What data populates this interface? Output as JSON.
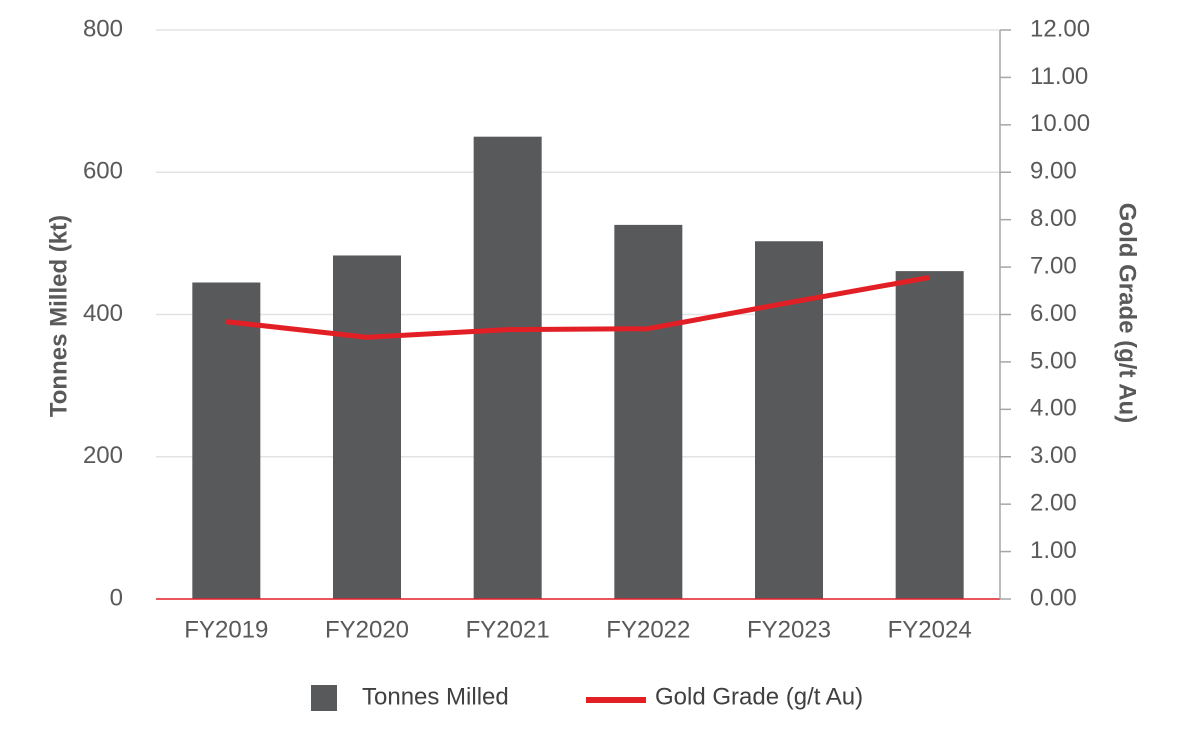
{
  "chart_data": {
    "type": "bar",
    "categories": [
      "FY2019",
      "FY2020",
      "FY2021",
      "FY2022",
      "FY2023",
      "FY2024"
    ],
    "series": [
      {
        "name": "Tonnes Milled",
        "type": "bar",
        "axis": "left",
        "color": "#58595b",
        "values": [
          445,
          483,
          650,
          526,
          503,
          461
        ]
      },
      {
        "name": "Gold Grade (g/t Au)",
        "type": "line",
        "axis": "right",
        "color": "#e31f26",
        "values": [
          5.85,
          5.52,
          5.68,
          5.7,
          6.25,
          6.78
        ]
      }
    ],
    "ylabel": "Tonnes Milled (kt)",
    "ylabel_right": "Gold Grade (g/t Au)",
    "ylim": [
      0,
      800
    ],
    "ylim_right": [
      0,
      12
    ],
    "yticks": [
      "800",
      "600",
      "400",
      "200",
      "0"
    ],
    "yticks_right": [
      "12.00",
      "11.00",
      "10.00",
      "9.00",
      "8.00",
      "7.00",
      "6.00",
      "5.00",
      "4.00",
      "3.00",
      "2.00",
      "1.00",
      "0.00"
    ],
    "grid": true,
    "legend_position": "bottom",
    "baseline_color": "#e31f26",
    "right_axis_color": "#a6a6a6"
  }
}
